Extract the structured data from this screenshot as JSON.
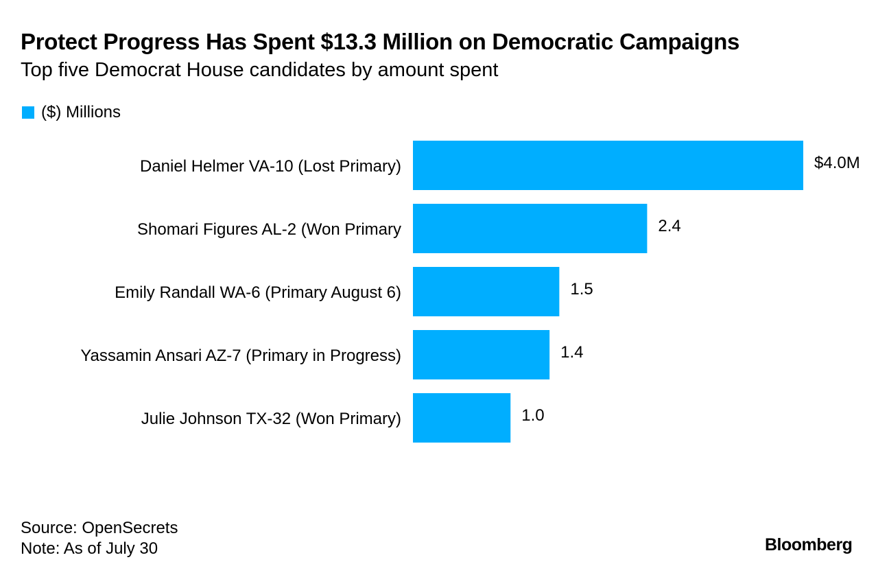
{
  "title": "Protect Progress Has Spent $13.3 Million on Democratic Campaigns",
  "subtitle": "Top five Democrat House candidates by amount spent",
  "legend": {
    "label": "($) Millions",
    "color": "#00aeff"
  },
  "chart_data": {
    "type": "bar",
    "orientation": "horizontal",
    "categories": [
      "Daniel Helmer VA-10 (Lost Primary)",
      "Shomari Figures AL-2 (Won Primary",
      "Emily Randall WA-6 (Primary August 6)",
      "Yassamin Ansari AZ-7 (Primary in Progress)",
      "Julie Johnson TX-32 (Won Primary)"
    ],
    "series": [
      {
        "name": "($) Millions",
        "values": [
          4.0,
          2.4,
          1.5,
          1.4,
          1.0
        ],
        "color": "#00aeff"
      }
    ],
    "data_labels": [
      "$4.0M",
      "2.4",
      "1.5",
      "1.4",
      "1.0"
    ],
    "xlim": [
      0,
      4.0
    ],
    "grid": false,
    "legend_position": "top-left"
  },
  "footer": {
    "source": "Source: OpenSecrets",
    "note": "Note: As of July 30"
  },
  "logo": "Bloomberg"
}
